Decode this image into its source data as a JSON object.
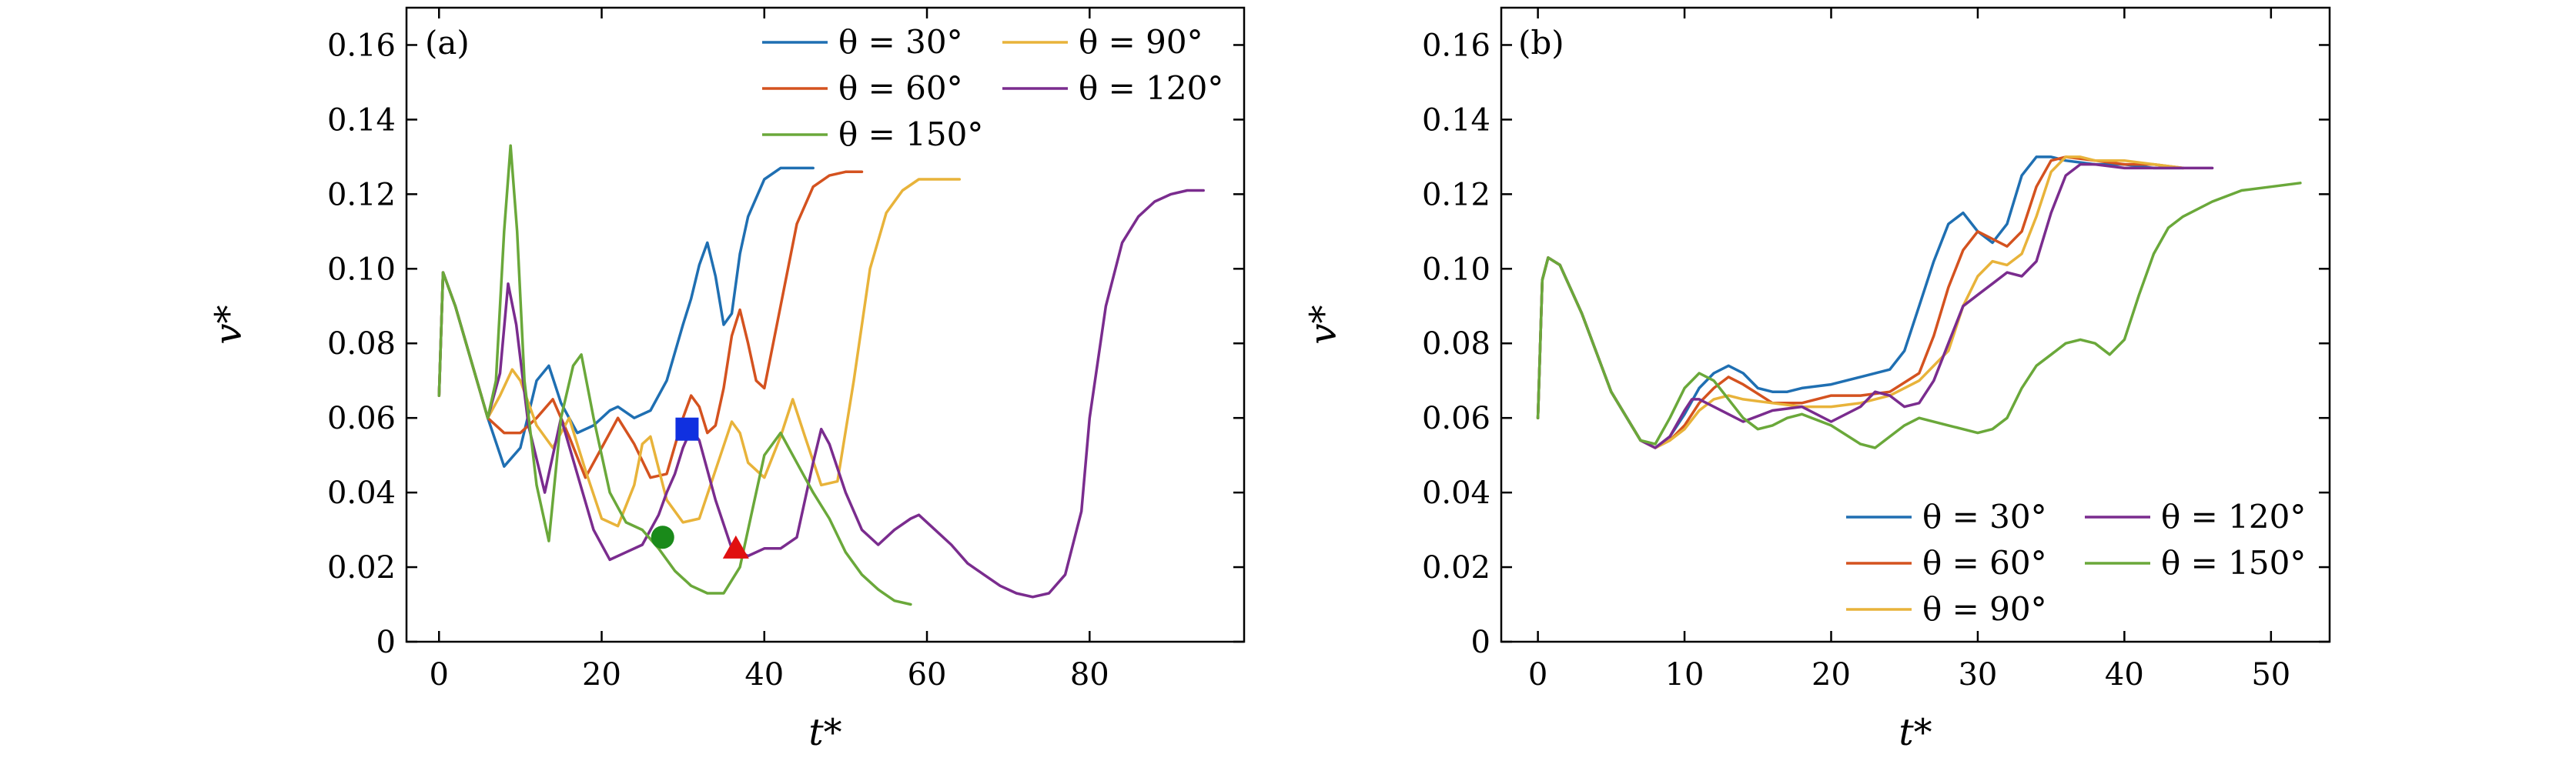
{
  "figure": {
    "description_labels": [
      "(a)",
      "(b)"
    ]
  },
  "colors": {
    "theta30": "#1f6fb2",
    "theta60": "#d4521f",
    "theta90": "#e8b33a",
    "theta120": "#7a2c8e",
    "theta150": "#6aa83a",
    "marker_square": "#1030e0",
    "marker_circle": "#1a8a1a",
    "marker_triangle": "#e01010"
  },
  "chart_data": [
    {
      "type": "line",
      "panel_label": "(a)",
      "xlabel": "t*",
      "ylabel": "v*",
      "xlim": [
        -4,
        99
      ],
      "ylim": [
        0,
        0.17
      ],
      "xticks": [
        0,
        20,
        40,
        60,
        80
      ],
      "xtick_labels": [
        "0",
        "20",
        "40",
        "60",
        "80"
      ],
      "yticks": [
        0,
        0.02,
        0.04,
        0.06,
        0.08,
        0.1,
        0.12,
        0.14,
        0.16
      ],
      "ytick_labels": [
        "0",
        "0.02",
        "0.04",
        "0.06",
        "0.08",
        "0.10",
        "0.12",
        "0.14",
        "0.16"
      ],
      "legend_position": "top-right",
      "legend": [
        "θ = 30°",
        "θ = 60°",
        "θ = 90°",
        "θ = 120°",
        "θ = 150°"
      ],
      "series": [
        {
          "name": "θ = 30°",
          "color_key": "theta30",
          "x": [
            0,
            0.5,
            1,
            2,
            4,
            6,
            8,
            10,
            12,
            13.5,
            15,
            17,
            19,
            21,
            22,
            24,
            26,
            28,
            30,
            31,
            32,
            33,
            34,
            35,
            36,
            37,
            38,
            40,
            42,
            44,
            46
          ],
          "y": [
            0.066,
            0.099,
            0.096,
            0.09,
            0.075,
            0.06,
            0.047,
            0.052,
            0.07,
            0.074,
            0.064,
            0.056,
            0.058,
            0.062,
            0.063,
            0.06,
            0.062,
            0.07,
            0.085,
            0.092,
            0.101,
            0.107,
            0.098,
            0.085,
            0.088,
            0.104,
            0.114,
            0.124,
            0.127,
            0.127,
            0.127
          ]
        },
        {
          "name": "θ = 60°",
          "color_key": "theta60",
          "x": [
            0,
            0.5,
            1,
            2,
            4,
            6,
            8,
            10,
            12,
            14,
            16,
            18,
            20,
            22,
            24,
            26,
            28,
            30,
            31,
            32,
            33,
            34,
            35,
            36,
            37,
            38,
            39,
            40,
            42,
            44,
            46,
            48,
            50,
            52
          ],
          "y": [
            0.066,
            0.099,
            0.096,
            0.09,
            0.075,
            0.06,
            0.056,
            0.056,
            0.06,
            0.065,
            0.055,
            0.044,
            0.052,
            0.06,
            0.053,
            0.044,
            0.045,
            0.06,
            0.066,
            0.063,
            0.056,
            0.058,
            0.068,
            0.082,
            0.089,
            0.08,
            0.07,
            0.068,
            0.09,
            0.112,
            0.122,
            0.125,
            0.126,
            0.126
          ]
        },
        {
          "name": "θ = 90°",
          "color_key": "theta90",
          "x": [
            0,
            0.5,
            1,
            2,
            4,
            6,
            7.5,
            9,
            10,
            12,
            14,
            16,
            18,
            20,
            22,
            24,
            25,
            26,
            28,
            30,
            32,
            34,
            36,
            37,
            38,
            40,
            42,
            43.5,
            45,
            47,
            49,
            51,
            53,
            55,
            57,
            59,
            61,
            63,
            64
          ],
          "y": [
            0.066,
            0.099,
            0.096,
            0.09,
            0.075,
            0.06,
            0.066,
            0.073,
            0.07,
            0.058,
            0.052,
            0.06,
            0.046,
            0.033,
            0.031,
            0.042,
            0.053,
            0.055,
            0.038,
            0.032,
            0.033,
            0.046,
            0.059,
            0.056,
            0.048,
            0.044,
            0.055,
            0.065,
            0.055,
            0.042,
            0.043,
            0.07,
            0.1,
            0.115,
            0.121,
            0.124,
            0.124,
            0.124,
            0.124
          ]
        },
        {
          "name": "θ = 120°",
          "color_key": "theta120",
          "x": [
            0,
            0.5,
            1,
            2,
            4,
            6,
            7.5,
            8.5,
            9.5,
            11,
            13,
            15,
            17,
            19,
            21,
            23,
            25,
            27,
            28,
            29,
            30,
            31,
            32,
            34,
            36,
            38,
            40,
            42,
            44,
            46,
            47,
            48,
            50,
            52,
            54,
            56,
            58,
            59,
            61,
            63,
            65,
            67,
            69,
            71,
            73,
            75,
            77,
            79,
            80,
            82,
            84,
            86,
            88,
            90,
            92,
            94
          ],
          "y": [
            0.066,
            0.099,
            0.096,
            0.09,
            0.075,
            0.06,
            0.072,
            0.096,
            0.085,
            0.058,
            0.04,
            0.06,
            0.045,
            0.03,
            0.022,
            0.024,
            0.026,
            0.034,
            0.04,
            0.045,
            0.052,
            0.057,
            0.054,
            0.038,
            0.025,
            0.023,
            0.025,
            0.025,
            0.028,
            0.048,
            0.057,
            0.053,
            0.04,
            0.03,
            0.026,
            0.03,
            0.033,
            0.034,
            0.03,
            0.026,
            0.021,
            0.018,
            0.015,
            0.013,
            0.012,
            0.013,
            0.018,
            0.035,
            0.06,
            0.09,
            0.107,
            0.114,
            0.118,
            0.12,
            0.121,
            0.121
          ]
        },
        {
          "name": "θ = 150°",
          "color_key": "theta150",
          "x": [
            0,
            0.5,
            1,
            2,
            4,
            6,
            7,
            8,
            8.8,
            9.6,
            10.5,
            12,
            13.5,
            15,
            16.5,
            17.5,
            19,
            21,
            23,
            25,
            27,
            29,
            31,
            33,
            35,
            37,
            38.5,
            40,
            42,
            44,
            46,
            48,
            50,
            52,
            54,
            56,
            58
          ],
          "y": [
            0.066,
            0.099,
            0.096,
            0.09,
            0.075,
            0.06,
            0.07,
            0.11,
            0.133,
            0.11,
            0.07,
            0.042,
            0.027,
            0.06,
            0.074,
            0.077,
            0.06,
            0.04,
            0.032,
            0.03,
            0.025,
            0.019,
            0.015,
            0.013,
            0.013,
            0.02,
            0.035,
            0.05,
            0.056,
            0.048,
            0.04,
            0.033,
            0.024,
            0.018,
            0.014,
            0.011,
            0.01
          ]
        }
      ],
      "markers": [
        {
          "shape": "square",
          "x": 30.5,
          "y": 0.057,
          "color_key": "marker_square"
        },
        {
          "shape": "circle",
          "x": 27.5,
          "y": 0.028,
          "color_key": "marker_circle"
        },
        {
          "shape": "triangle",
          "x": 36.5,
          "y": 0.025,
          "color_key": "marker_triangle"
        }
      ]
    },
    {
      "type": "line",
      "panel_label": "(b)",
      "xlabel": "t*",
      "ylabel": "v*",
      "xlim": [
        -2.5,
        54
      ],
      "ylim": [
        0,
        0.17
      ],
      "xticks": [
        0,
        10,
        20,
        30,
        40,
        50
      ],
      "xtick_labels": [
        "0",
        "10",
        "20",
        "30",
        "40",
        "50"
      ],
      "yticks": [
        0,
        0.02,
        0.04,
        0.06,
        0.08,
        0.1,
        0.12,
        0.14,
        0.16
      ],
      "ytick_labels": [
        "0",
        "0.02",
        "0.04",
        "0.06",
        "0.08",
        "0.10",
        "0.12",
        "0.14",
        "0.16"
      ],
      "legend_position": "bottom-right",
      "legend": [
        "θ = 30°",
        "θ = 60°",
        "θ = 90°",
        "θ = 120°",
        "θ = 150°"
      ],
      "series": [
        {
          "name": "θ = 30°",
          "color_key": "theta30",
          "x": [
            0,
            0.3,
            0.7,
            1.5,
            3,
            5,
            7,
            8,
            9,
            10,
            11,
            12,
            13,
            14,
            15,
            16,
            17,
            18,
            20,
            22,
            24,
            25,
            26,
            27,
            28,
            29,
            30,
            31,
            32,
            33,
            34,
            35,
            36,
            38,
            40,
            42,
            44
          ],
          "y": [
            0.06,
            0.097,
            0.103,
            0.101,
            0.088,
            0.067,
            0.054,
            0.052,
            0.055,
            0.061,
            0.068,
            0.072,
            0.074,
            0.072,
            0.068,
            0.067,
            0.067,
            0.068,
            0.069,
            0.071,
            0.073,
            0.078,
            0.09,
            0.102,
            0.112,
            0.115,
            0.11,
            0.107,
            0.112,
            0.125,
            0.13,
            0.13,
            0.129,
            0.128,
            0.128,
            0.127,
            0.127
          ]
        },
        {
          "name": "θ = 60°",
          "color_key": "theta60",
          "x": [
            0,
            0.3,
            0.7,
            1.5,
            3,
            5,
            7,
            8,
            9,
            10,
            11,
            12,
            13,
            14,
            16,
            18,
            20,
            22,
            24,
            26,
            27,
            28,
            29,
            30,
            31,
            32,
            33,
            34,
            35,
            36,
            38,
            40,
            42,
            44
          ],
          "y": [
            0.06,
            0.097,
            0.103,
            0.101,
            0.088,
            0.067,
            0.054,
            0.052,
            0.054,
            0.058,
            0.064,
            0.068,
            0.071,
            0.069,
            0.064,
            0.064,
            0.066,
            0.066,
            0.067,
            0.072,
            0.082,
            0.095,
            0.105,
            0.11,
            0.108,
            0.106,
            0.11,
            0.122,
            0.129,
            0.13,
            0.129,
            0.128,
            0.128,
            0.127
          ]
        },
        {
          "name": "θ = 90°",
          "color_key": "theta90",
          "x": [
            0,
            0.3,
            0.7,
            1.5,
            3,
            5,
            7,
            8,
            9,
            10,
            11,
            12,
            13,
            14,
            16,
            18,
            20,
            22,
            24,
            26,
            28,
            29,
            30,
            31,
            32,
            33,
            34,
            35,
            36,
            37,
            38,
            40,
            42,
            44
          ],
          "y": [
            0.06,
            0.097,
            0.103,
            0.101,
            0.088,
            0.067,
            0.054,
            0.052,
            0.054,
            0.057,
            0.062,
            0.065,
            0.066,
            0.065,
            0.064,
            0.063,
            0.063,
            0.064,
            0.066,
            0.07,
            0.078,
            0.09,
            0.098,
            0.102,
            0.101,
            0.104,
            0.114,
            0.126,
            0.13,
            0.13,
            0.129,
            0.129,
            0.128,
            0.127
          ]
        },
        {
          "name": "θ = 120°",
          "color_key": "theta120",
          "x": [
            0,
            0.3,
            0.7,
            1.5,
            3,
            5,
            7,
            8,
            9,
            10,
            10.5,
            11,
            12,
            13,
            14,
            16,
            18,
            20,
            22,
            23,
            24,
            25,
            26,
            27,
            28,
            29,
            30,
            31,
            32,
            33,
            34,
            35,
            36,
            37,
            38,
            40,
            42,
            44,
            46
          ],
          "y": [
            0.06,
            0.097,
            0.103,
            0.101,
            0.088,
            0.067,
            0.054,
            0.052,
            0.055,
            0.062,
            0.065,
            0.065,
            0.063,
            0.061,
            0.059,
            0.062,
            0.063,
            0.059,
            0.063,
            0.067,
            0.066,
            0.063,
            0.064,
            0.07,
            0.08,
            0.09,
            0.093,
            0.096,
            0.099,
            0.098,
            0.102,
            0.115,
            0.125,
            0.128,
            0.128,
            0.127,
            0.127,
            0.127,
            0.127
          ]
        },
        {
          "name": "θ = 150°",
          "color_key": "theta150",
          "x": [
            0,
            0.3,
            0.7,
            1.5,
            3,
            5,
            7,
            8,
            9,
            10,
            11,
            12,
            13,
            14,
            15,
            16,
            17,
            18,
            20,
            22,
            23,
            24,
            25,
            26,
            28,
            30,
            31,
            32,
            33,
            34,
            35,
            36,
            37,
            38,
            39,
            40,
            41,
            42,
            43,
            44,
            46,
            48,
            50,
            52
          ],
          "y": [
            0.06,
            0.097,
            0.103,
            0.101,
            0.088,
            0.067,
            0.054,
            0.053,
            0.06,
            0.068,
            0.072,
            0.07,
            0.065,
            0.06,
            0.057,
            0.058,
            0.06,
            0.061,
            0.058,
            0.053,
            0.052,
            0.055,
            0.058,
            0.06,
            0.058,
            0.056,
            0.057,
            0.06,
            0.068,
            0.074,
            0.077,
            0.08,
            0.081,
            0.08,
            0.077,
            0.081,
            0.093,
            0.104,
            0.111,
            0.114,
            0.118,
            0.121,
            0.122,
            0.123
          ]
        }
      ],
      "markers": []
    }
  ]
}
